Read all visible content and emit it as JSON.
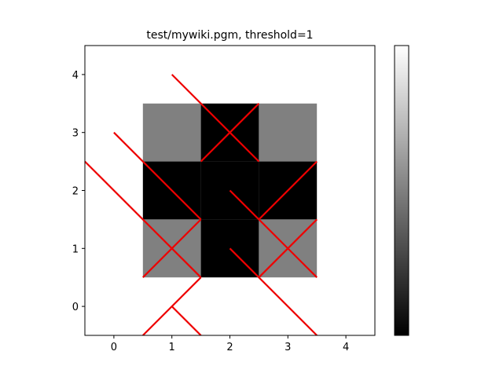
{
  "chart_data": {
    "type": "heatmap",
    "title": "test/mywiki.pgm, threshold=1",
    "xlabel": "",
    "ylabel": "",
    "xlim": [
      -0.5,
      4.5
    ],
    "ylim": [
      -0.5,
      4.5
    ],
    "grid": false,
    "xticks": [
      0,
      1,
      2,
      3,
      4
    ],
    "yticks": [
      0,
      1,
      2,
      3,
      4
    ],
    "cells": [
      {
        "x": 1,
        "y": 3,
        "value": 0.5
      },
      {
        "x": 2,
        "y": 3,
        "value": 0
      },
      {
        "x": 3,
        "y": 3,
        "value": 0.5
      },
      {
        "x": 1,
        "y": 2,
        "value": 0
      },
      {
        "x": 2,
        "y": 2,
        "value": 0
      },
      {
        "x": 3,
        "y": 2,
        "value": 0
      },
      {
        "x": 1,
        "y": 1,
        "value": 0.5
      },
      {
        "x": 2,
        "y": 1,
        "value": 0
      },
      {
        "x": 3,
        "y": 1,
        "value": 0.5
      }
    ],
    "background_value": 1,
    "colormap": "gray",
    "colorbar": {
      "min": 0,
      "max": 1,
      "show_ticks": false
    },
    "overlay_color": "#ee0000",
    "overlay_lines": [
      {
        "x1": 1,
        "y1": 4,
        "x2": 2.5,
        "y2": 2.5
      },
      {
        "x1": 1.5,
        "y1": 2.5,
        "x2": 2.5,
        "y2": 3.5
      },
      {
        "x1": 0,
        "y1": 3,
        "x2": 1.5,
        "y2": 1.5
      },
      {
        "x1": -0.5,
        "y1": 2.5,
        "x2": 1.5,
        "y2": 0.5
      },
      {
        "x1": 0.5,
        "y1": 0.5,
        "x2": 1.5,
        "y2": 1.5
      },
      {
        "x1": 0.5,
        "y1": -0.5,
        "x2": 1.5,
        "y2": 0.5
      },
      {
        "x1": 1,
        "y1": 0,
        "x2": 1.5,
        "y2": -0.5
      },
      {
        "x1": 2,
        "y1": 2,
        "x2": 3.5,
        "y2": 0.5
      },
      {
        "x1": 2.5,
        "y1": 1.5,
        "x2": 3.5,
        "y2": 2.5
      },
      {
        "x1": 2.5,
        "y1": 0.5,
        "x2": 3.5,
        "y2": 1.5
      },
      {
        "x1": 2,
        "y1": 1,
        "x2": 3.5,
        "y2": -0.5
      }
    ]
  }
}
